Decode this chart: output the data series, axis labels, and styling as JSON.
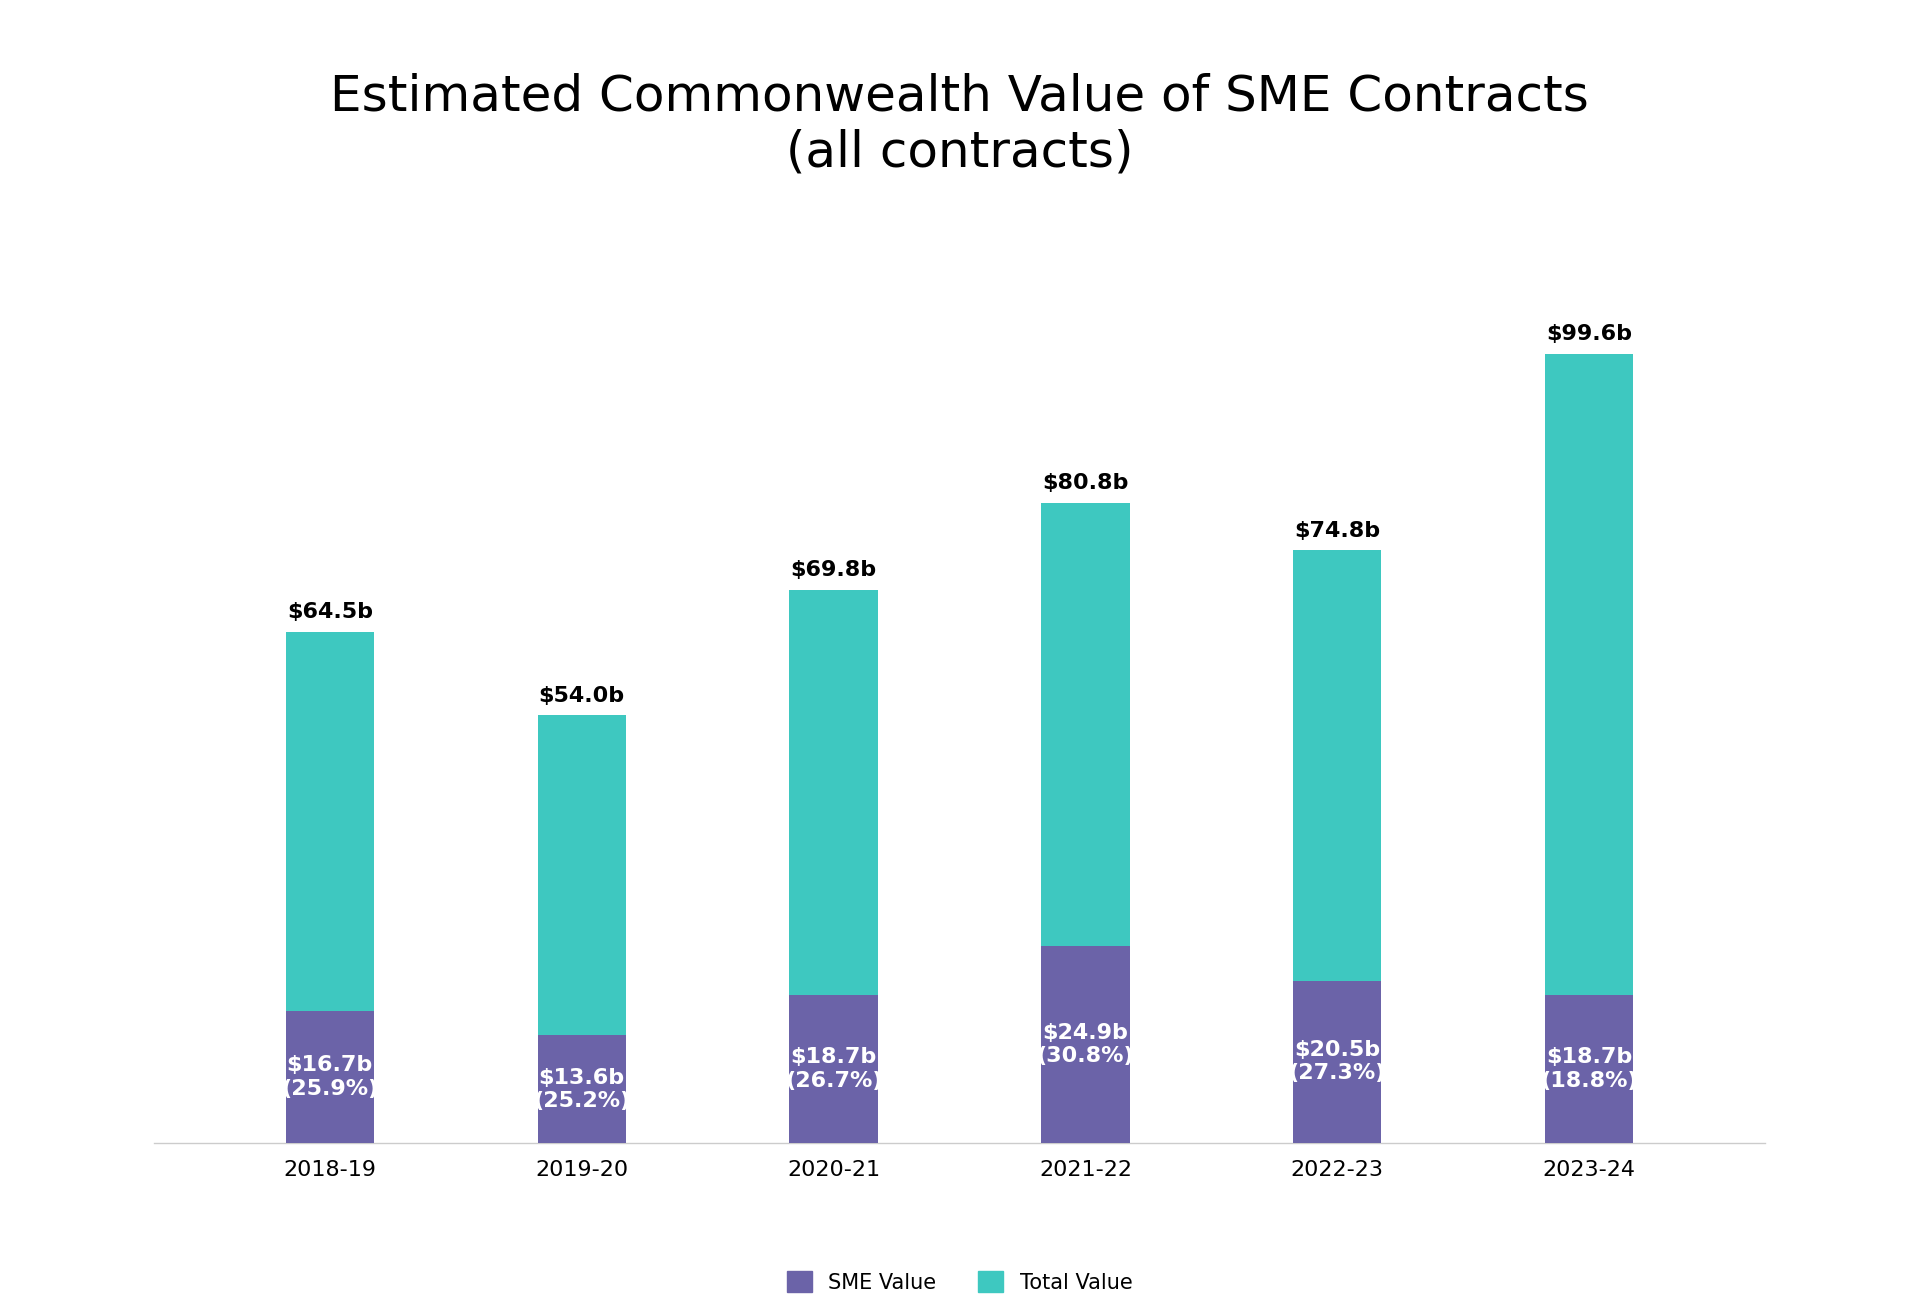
{
  "title": "Estimated Commonwealth Value of SME Contracts\n(all contracts)",
  "categories": [
    "2018-19",
    "2019-20",
    "2020-21",
    "2021-22",
    "2022-23",
    "2023-24"
  ],
  "total_values": [
    64.5,
    54.0,
    69.8,
    80.8,
    74.8,
    99.6
  ],
  "sme_values": [
    16.7,
    13.6,
    18.7,
    24.9,
    20.5,
    18.7
  ],
  "sme_labels": [
    "$16.7b\n(25.9%)",
    "$13.6b\n(25.2%)",
    "$18.7b\n(26.7%)",
    "$24.9b\n(30.8%)",
    "$20.5b\n(27.3%)",
    "$18.7b\n(18.8%)"
  ],
  "total_labels": [
    "$64.5b",
    "$54.0b",
    "$69.8b",
    "$80.8b",
    "$74.8b",
    "$99.6b"
  ],
  "sme_color": "#6B63A8",
  "total_color": "#3EC8C0",
  "background_color": "#ffffff",
  "title_fontsize": 36,
  "label_fontsize": 16,
  "tick_fontsize": 16,
  "legend_fontsize": 15,
  "bar_width": 0.35,
  "legend_sme": "SME Value",
  "legend_total": "Total Value"
}
